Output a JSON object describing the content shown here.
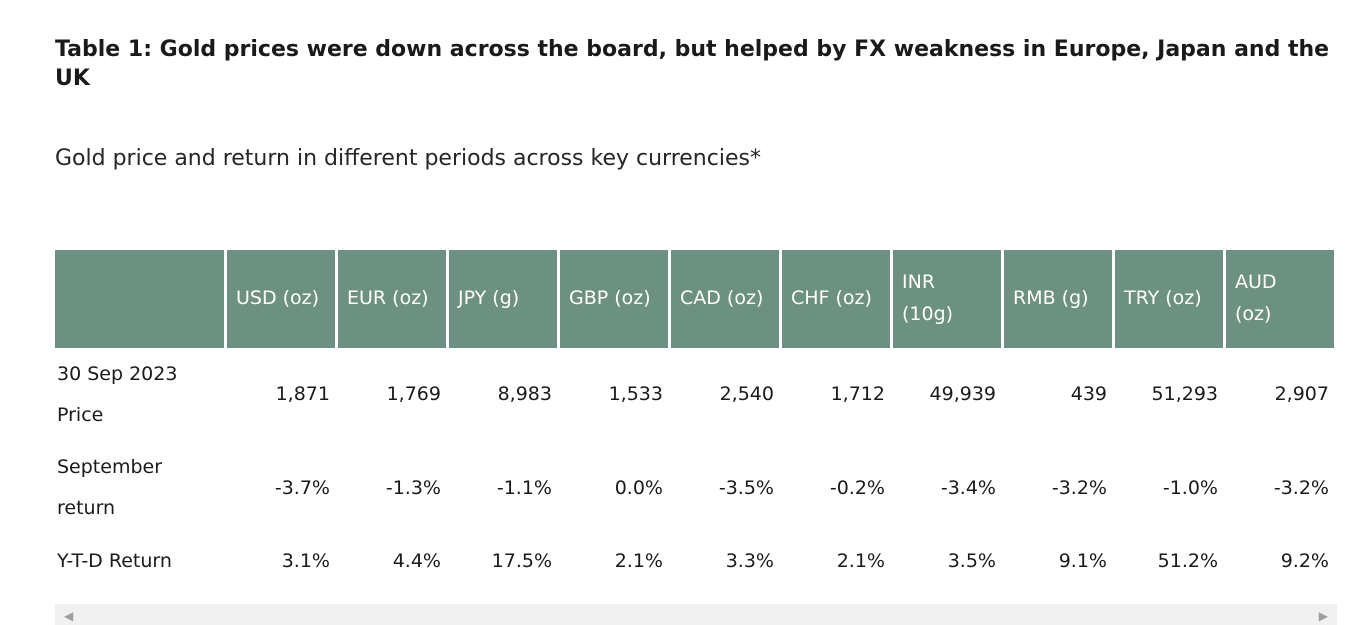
{
  "page": {
    "title": "Table 1: Gold prices were down across the board, but helped by FX weakness in Europe, Japan and the UK",
    "subtitle": "Gold price and return in different periods across key currencies*"
  },
  "colors": {
    "header_bg": "#6C9081",
    "header_text": "#FFFFFF",
    "body_text": "#1A1A1A",
    "scrollbar_track": "#F1F1F1",
    "scrollbar_arrow": "#9E9E9E"
  },
  "table": {
    "columns_display": [
      "",
      "USD (oz)",
      "EUR (oz)",
      "JPY (g)",
      "GBP (oz)",
      "CAD (oz)",
      "CHF (oz)",
      "INR\n(10g)",
      "RMB (g)",
      "TRY (oz)",
      "AUD\n(oz)"
    ]
  },
  "scrollbar": {
    "left_arrow": "◀",
    "right_arrow": "▶"
  },
  "chart_data": {
    "type": "table",
    "title": "Table 1: Gold prices were down across the board, but helped by FX weakness in Europe, Japan and the UK",
    "subtitle": "Gold price and return in different periods across key currencies*",
    "columns": [
      "USD (oz)",
      "EUR (oz)",
      "JPY (g)",
      "GBP (oz)",
      "CAD (oz)",
      "CHF (oz)",
      "INR (10g)",
      "RMB (g)",
      "TRY (oz)",
      "AUD (oz)"
    ],
    "rows": [
      {
        "label": "30 Sep 2023 Price",
        "values": [
          "1,871",
          "1,769",
          "8,983",
          "1,533",
          "2,540",
          "1,712",
          "49,939",
          "439",
          "51,293",
          "2,907"
        ]
      },
      {
        "label": "September return",
        "values": [
          "-3.7%",
          "-1.3%",
          "-1.1%",
          "0.0%",
          "-3.5%",
          "-0.2%",
          "-3.4%",
          "-3.2%",
          "-1.0%",
          "-3.2%"
        ]
      },
      {
        "label": "Y-T-D Return",
        "values": [
          "3.1%",
          "4.4%",
          "17.5%",
          "2.1%",
          "3.3%",
          "2.1%",
          "3.5%",
          "9.1%",
          "51.2%",
          "9.2%"
        ]
      }
    ]
  }
}
